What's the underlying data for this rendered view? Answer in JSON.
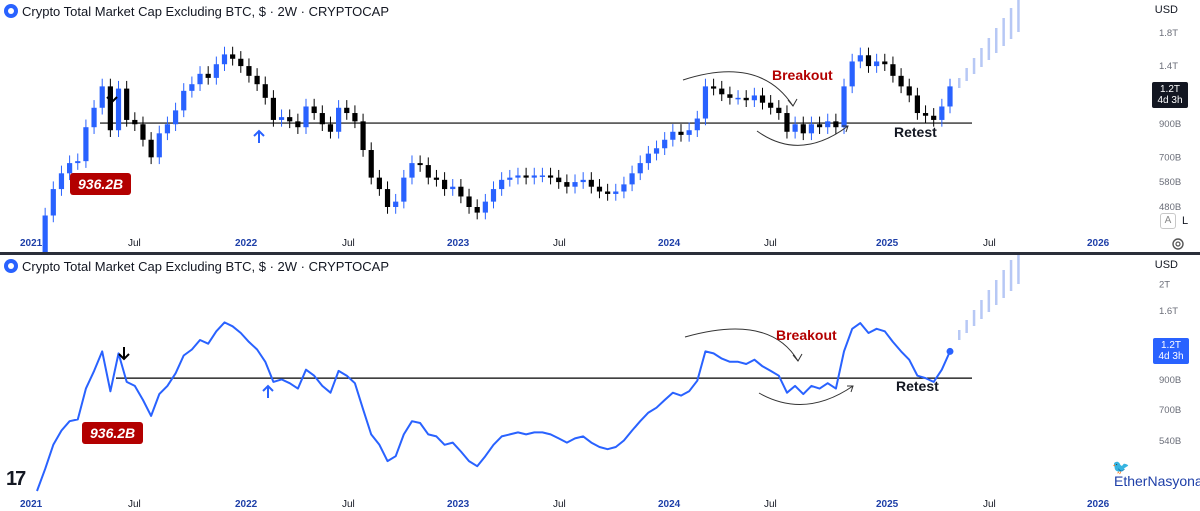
{
  "header": {
    "title": "Crypto Total Market Cap Excluding BTC, $ · 2W · CRYPTOCAP",
    "currency": "USD"
  },
  "panel_top": {
    "y_ticks": [
      "1.8T",
      "1.4T",
      "1.2T",
      "900B",
      "700B",
      "580B",
      "480B"
    ],
    "y_tick_values": [
      1.8,
      1.4,
      1.2,
      0.9,
      0.7,
      0.58,
      0.48
    ],
    "price_tag": {
      "value": "1.2T",
      "countdown": "4d 3h"
    },
    "badge": "936.2B",
    "breakout_label": "Breakout",
    "retest_label": "Retest",
    "auto_button": "A",
    "log_button": "L"
  },
  "panel_bottom": {
    "y_ticks": [
      "2T",
      "1.6T",
      "1.2T",
      "900B",
      "700B",
      "540B"
    ],
    "y_tick_values": [
      2.0,
      1.6,
      1.2,
      0.9,
      0.7,
      0.54
    ],
    "price_tag": {
      "value": "1.2T",
      "countdown": "4d 3h"
    },
    "badge": "936.2B",
    "breakout_label": "Breakout",
    "retest_label": "Retest",
    "tv_logo": "17",
    "author": "EtherNasyonaL"
  },
  "x_axis": {
    "labels": [
      "2021",
      "Jul",
      "2022",
      "Jul",
      "2023",
      "Jul",
      "2024",
      "Jul",
      "2025",
      "Jul",
      "2026"
    ],
    "year_flags": [
      true,
      false,
      true,
      false,
      true,
      false,
      true,
      false,
      true,
      false,
      true
    ]
  },
  "colors": {
    "up": "#2962ff",
    "down": "#000000",
    "line": "#2962ff",
    "annotation": "#b30000"
  },
  "chart_data": {
    "type": "line",
    "series": [
      {
        "values": [
          0.34,
          0.45,
          0.55,
          0.62,
          0.67,
          0.68,
          0.88,
          1.02,
          1.2,
          0.86,
          1.18,
          0.93,
          0.9,
          0.8,
          0.7,
          0.84,
          0.9,
          1.0,
          1.16,
          1.22,
          1.32,
          1.28,
          1.42,
          1.53,
          1.48,
          1.4,
          1.3,
          1.22,
          1.1,
          0.93,
          0.95,
          0.92,
          0.88,
          1.03,
          0.98,
          0.9,
          0.85,
          1.02,
          0.98,
          0.92,
          0.74,
          0.6,
          0.55,
          0.48,
          0.5,
          0.6,
          0.67,
          0.66,
          0.6,
          0.59,
          0.55,
          0.56,
          0.52,
          0.48,
          0.46,
          0.5,
          0.55,
          0.59,
          0.6,
          0.61,
          0.6,
          0.61,
          0.61,
          0.6,
          0.58,
          0.56,
          0.58,
          0.59,
          0.56,
          0.54,
          0.53,
          0.54,
          0.57,
          0.62,
          0.67,
          0.72,
          0.75,
          0.8,
          0.85,
          0.83,
          0.86,
          0.94,
          1.2,
          1.18,
          1.13,
          1.1,
          1.1,
          1.08,
          1.12,
          1.06,
          1.02,
          0.98,
          0.85,
          0.9,
          0.84,
          0.9,
          0.88,
          0.92,
          0.88,
          1.2,
          1.45,
          1.52,
          1.4,
          1.45,
          1.42,
          1.3,
          1.2,
          1.12,
          0.98,
          0.96,
          0.93,
          1.03,
          1.2
        ],
        "x_start": "2021",
        "x_end": "2025"
      }
    ],
    "horizontal_level": 0.9362,
    "ylabel": "",
    "xlabel": ""
  }
}
